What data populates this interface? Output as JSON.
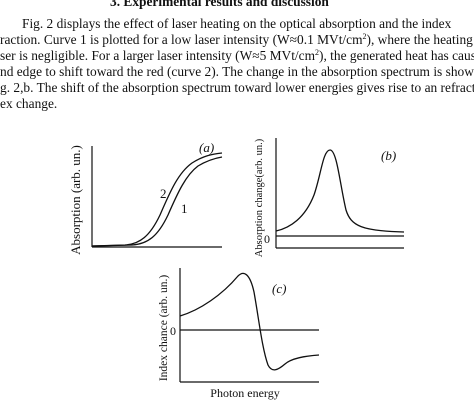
{
  "heading": "3. Experimental results and discussion",
  "paragraph": {
    "line1": "Fig. 2 displays the effect of laser heating on the optical absorption and the index",
    "line2_a": "raction. Curve 1 is plotted for a low laser intensity (W≈0.1 MVt/cm",
    "line2_sup": "2",
    "line2_b": "), where the heating by",
    "line3": "ser is negligible. For a larger laser intensity (W≈5 MVt/cm",
    "line3_sup": "2",
    "line3_b": "), the generated heat has caused",
    "line4": "nd edge to shift toward the red (curve 2). The change in the absorption spectrum is shown",
    "line5": "g. 2,b. The shift of the absorption spectrum toward lower energies gives rise to an refract",
    "line6": "ex change."
  },
  "figure": {
    "panel_a": {
      "letter": "(a)",
      "ylabel": "Absorption (arb. un.)",
      "curve_labels": [
        "2",
        "1"
      ]
    },
    "panel_b": {
      "letter": "(b)",
      "ylabel": "Absorption change(arb. un.)",
      "zero_label": "0"
    },
    "panel_c": {
      "letter": "(c)",
      "ylabel": "Index chance (arb. un.)",
      "zero_label": "0",
      "xlabel": "Photon energy"
    }
  }
}
